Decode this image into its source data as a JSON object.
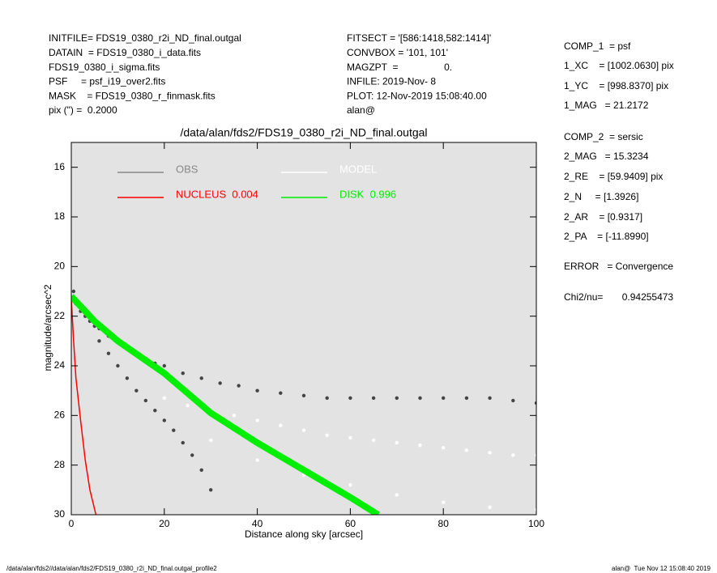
{
  "chart_data": {
    "type": "scatter",
    "title": "/data/alan/fds2/FDS19_0380_r2i_ND_final.outgal",
    "x_label": "Distance along sky [arcsec]",
    "y_label": "magnitude/arcsec^2",
    "xlim": [
      0,
      100
    ],
    "ylim": [
      15,
      30
    ],
    "y_inverted": true,
    "xticks": [
      0,
      20,
      40,
      60,
      80,
      100
    ],
    "yticks": [
      16,
      18,
      20,
      22,
      24,
      26,
      28,
      30
    ],
    "background": "#e3e3e3",
    "info_left": [
      "INITFILE= FDS19_0380_r2i_ND_final.outgal",
      "DATAIN  = FDS19_0380_i_data.fits",
      "FDS19_0380_i_sigma.fits",
      "PSF     = psf_i19_over2.fits",
      "MASK    = FDS19_0380_r_finmask.fits",
      "pix (\") =  0.2000"
    ],
    "info_mid": [
      "FITSECT = '[586:1418,582:1414]'",
      "CONVBOX = '101, 101'",
      "MAGZPT  =                 0.",
      "INFILE: 2019-Nov- 8",
      "PLOT: 12-Nov-2019 15:08:40.00",
      "alan@"
    ],
    "info_right": [
      "COMP_1  = psf",
      "1_XC    = [1002.0630] pix",
      "1_YC    = [998.8370] pix",
      "1_MAG   = 21.2172",
      "COMP_2  = sersic",
      "2_MAG   = 15.3234",
      "2_RE    = [59.9409] pix",
      "2_N     = [1.3926]",
      "2_AR    = [0.9317]",
      "2_PA    = [-11.8990]",
      "ERROR   = Convergence",
      "Chi2/nu=       0.94255473"
    ],
    "footer_left": "/data/alan/fds2//data/alan/fds2/FDS19_0380_r2i_ND_final.outgal_profile2",
    "footer_right": "alan@  Tue Nov 12 15:08:40 2019",
    "series": [
      {
        "name": "OBS",
        "color": "#444444",
        "legend_color": "#888888",
        "mode": "markers",
        "x": [
          0.5,
          1,
          2,
          3,
          4,
          5,
          6,
          8,
          10,
          12,
          14,
          16,
          18,
          20,
          24,
          28,
          32,
          36,
          40,
          45,
          50,
          55,
          60,
          65,
          70,
          75,
          80,
          85,
          90,
          95,
          100,
          6,
          8,
          10,
          12,
          14,
          16,
          18,
          20,
          22,
          24,
          26,
          28,
          30
        ],
        "values": [
          21.0,
          21.5,
          21.8,
          22.0,
          22.2,
          22.4,
          22.5,
          22.8,
          23.0,
          23.3,
          23.5,
          23.7,
          23.9,
          24.0,
          24.3,
          24.5,
          24.7,
          24.8,
          25.0,
          25.1,
          25.2,
          25.3,
          25.3,
          25.3,
          25.3,
          25.3,
          25.3,
          25.3,
          25.3,
          25.4,
          25.5,
          23.0,
          23.5,
          24.0,
          24.5,
          25.0,
          25.4,
          25.8,
          26.2,
          26.6,
          27.1,
          27.6,
          28.2,
          29.0
        ]
      },
      {
        "name": "MODEL",
        "color": "#ffffff",
        "legend_color": "#ffffff",
        "mode": "markers",
        "x": [
          20,
          25,
          30,
          35,
          40,
          45,
          50,
          55,
          60,
          65,
          70,
          75,
          80,
          85,
          90,
          95,
          100,
          30,
          40,
          50,
          60,
          70,
          80,
          90,
          100
        ],
        "values": [
          25.3,
          25.6,
          25.8,
          26.0,
          26.2,
          26.4,
          26.6,
          26.8,
          26.9,
          27.0,
          27.1,
          27.2,
          27.3,
          27.4,
          27.5,
          27.6,
          27.6,
          27.0,
          27.8,
          28.4,
          28.8,
          29.2,
          29.5,
          29.7,
          29.8
        ]
      },
      {
        "name": "NUCLEUS  0.004",
        "color": "#ff0000",
        "legend_color": "#ff0000",
        "mode": "lines",
        "x": [
          0,
          0.5,
          1,
          2,
          3,
          4,
          5.3
        ],
        "values": [
          21.3,
          23.0,
          24.5,
          26.2,
          27.8,
          29.0,
          30.0
        ]
      },
      {
        "name": "DISK  0.996",
        "color": "#00ee00",
        "legend_color": "#00ee00",
        "mode": "lines",
        "x": [
          0,
          5,
          10,
          20,
          30,
          40,
          50,
          60,
          66
        ],
        "values": [
          21.2,
          22.2,
          23.0,
          24.3,
          25.9,
          27.1,
          28.2,
          29.3,
          30.0
        ]
      }
    ]
  }
}
